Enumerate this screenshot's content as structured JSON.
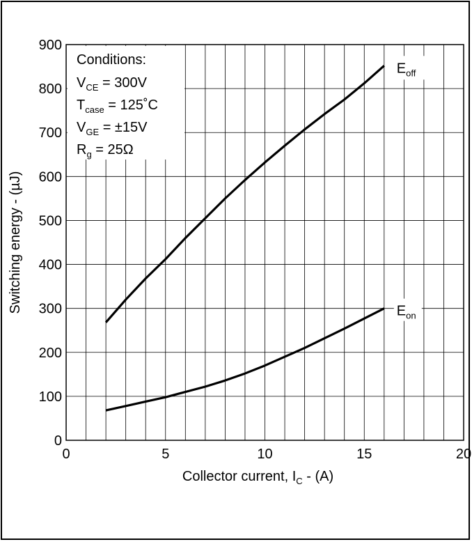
{
  "chart_data": {
    "type": "line",
    "xlabel": "Collector current, I",
    "xlabel_sub": "C",
    "xlabel_unit": " - (A)",
    "ylabel": "Switching energy - (µJ)",
    "xlim": [
      0,
      20
    ],
    "ylim": [
      0,
      900
    ],
    "x_ticks": [
      "0",
      "5",
      "10",
      "15",
      "20"
    ],
    "y_ticks": [
      "0",
      "100",
      "200",
      "300",
      "400",
      "500",
      "600",
      "700",
      "800",
      "900"
    ],
    "grid": true,
    "series": [
      {
        "name": "E",
        "name_sub": "off",
        "x": [
          2,
          3,
          4,
          5,
          6,
          7,
          8,
          9,
          10,
          11,
          12,
          13,
          14,
          15,
          16
        ],
        "y": [
          268,
          320,
          368,
          412,
          460,
          505,
          550,
          592,
          632,
          670,
          707,
          742,
          775,
          812,
          852
        ]
      },
      {
        "name": "E",
        "name_sub": "on",
        "x": [
          2,
          3,
          4,
          5,
          6,
          7,
          8,
          9,
          10,
          11,
          12,
          13,
          14,
          15,
          16
        ],
        "y": [
          68,
          78,
          88,
          98,
          110,
          122,
          136,
          152,
          170,
          190,
          210,
          232,
          254,
          277,
          300
        ]
      }
    ],
    "annotation": {
      "lines": [
        {
          "main": "Conditions:",
          "sub": "",
          "rest": ""
        },
        {
          "main": "V",
          "sub": "CE",
          "rest": " = 300V"
        },
        {
          "main": "T",
          "sub": "case",
          "rest": " = 125˚C"
        },
        {
          "main": "V",
          "sub": "GE",
          "rest": " = ±15V"
        },
        {
          "main": "R",
          "sub": "g",
          "rest": " = 25Ω"
        }
      ]
    }
  }
}
